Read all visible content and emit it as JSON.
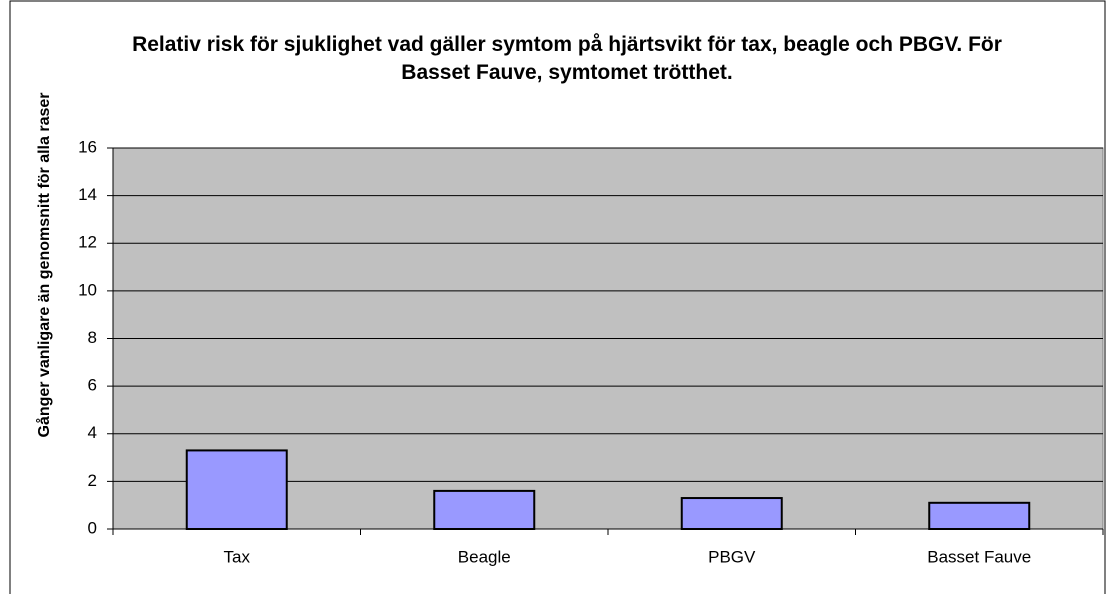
{
  "chart_data": {
    "type": "bar",
    "title": "Relativ risk för sjuklighet vad gäller symtom på hjärtsvikt för tax, beagle och PBGV. För Basset Fauve, symtomet trötthet.",
    "ylabel": "Gånger vanligare än genomsnitt för alla raser",
    "categories": [
      "Tax",
      "Beagle",
      "PBGV",
      "Basset Fauve"
    ],
    "values": [
      3.3,
      1.6,
      1.3,
      1.1
    ],
    "color": "#9999ff",
    "plot_background": "#c0c0c0",
    "ylim": [
      0,
      16
    ],
    "yticks": [
      0,
      2,
      4,
      6,
      8,
      10,
      12,
      14,
      16
    ],
    "grid": true
  }
}
